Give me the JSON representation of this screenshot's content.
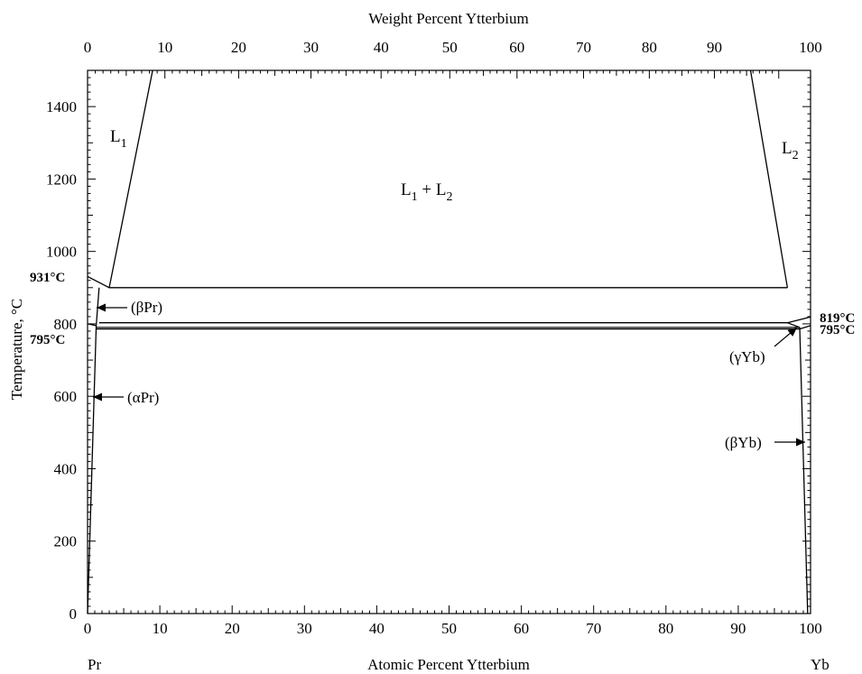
{
  "chart_data": {
    "type": "line",
    "title": "",
    "xlabel": "Atomic Percent Ytterbium",
    "x2label": "Weight Percent Ytterbium",
    "ylabel": "Temperature, °C",
    "xlim": [
      0,
      100
    ],
    "ylim": [
      0,
      1500
    ],
    "grid": false,
    "x_ticks": [
      0,
      10,
      20,
      30,
      40,
      50,
      60,
      70,
      80,
      90,
      100
    ],
    "x_tick_labels": [
      "0",
      "10",
      "20",
      "30",
      "40",
      "50",
      "60",
      "70",
      "80",
      "90",
      "100"
    ],
    "y_ticks": [
      0,
      200,
      400,
      600,
      800,
      1000,
      1200,
      1400
    ],
    "y_tick_labels": [
      "0",
      "200",
      "400",
      "600",
      "800",
      "1000",
      "1200",
      "1400"
    ],
    "x2_ticks_at_pct": [
      0,
      10,
      20,
      30,
      40,
      50,
      60,
      70,
      80,
      90,
      100
    ],
    "x2_tick_labels": [
      "0",
      "10",
      "20",
      "30",
      "40",
      "50",
      "60",
      "70",
      "80",
      "90",
      "100"
    ],
    "x2_tick_positions_at": [
      0,
      10.7,
      20.9,
      30.9,
      40.6,
      50.1,
      59.4,
      68.6,
      77.7,
      86.7,
      95.6
    ],
    "element_left": "Pr",
    "element_right": "Yb",
    "phase_labels": {
      "L1_main": "L",
      "L1_sub": "1",
      "L2_main": "L",
      "L2_sub": "2",
      "gap_L1": "L",
      "gap_sub1": "1",
      "gap_plus": " + L",
      "gap_sub2": "2",
      "beta_pr": "(βPr)",
      "alpha_pr": "(αPr)",
      "gamma_yb": "(γYb)",
      "beta_yb": "(βYb)"
    },
    "temperature_labels": {
      "t931": "931°C",
      "t795_left": "795°C",
      "t819": "819°C",
      "t795_right": "795°C"
    },
    "series": [
      {
        "points": [
          [
            3.0,
            900
          ],
          [
            9.0,
            1500
          ]
        ]
      },
      {
        "points": [
          [
            96.8,
            900
          ],
          [
            91.7,
            1500
          ]
        ]
      },
      {
        "points": [
          [
            0,
            931
          ],
          [
            3.0,
            900
          ],
          [
            96.8,
            900
          ]
        ]
      },
      {
        "points": [
          [
            1.6,
            900
          ],
          [
            1.2,
            795
          ]
        ]
      },
      {
        "points": [
          [
            0,
            800
          ],
          [
            1.2,
            795
          ]
        ]
      },
      {
        "points": [
          [
            1.2,
            795
          ],
          [
            0,
            0
          ]
        ]
      },
      {
        "points": [
          [
            1.6,
            803
          ],
          [
            96.8,
            803
          ],
          [
            100,
            819
          ]
        ]
      },
      {
        "points": [
          [
            1.2,
            790
          ],
          [
            98.5,
            790
          ]
        ]
      },
      {
        "points": [
          [
            1.2,
            786
          ],
          [
            98.5,
            786
          ]
        ]
      },
      {
        "points": [
          [
            96.8,
            803
          ],
          [
            98.5,
            790
          ]
        ]
      },
      {
        "points": [
          [
            98.5,
            786
          ],
          [
            100,
            795
          ]
        ]
      },
      {
        "points": [
          [
            98.5,
            790
          ],
          [
            99.6,
            0
          ]
        ]
      }
    ]
  }
}
